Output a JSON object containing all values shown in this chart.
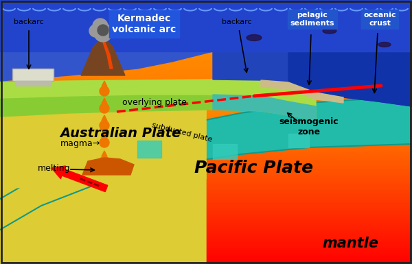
{
  "fig_width": 6.0,
  "fig_height": 3.85,
  "dpi": 100,
  "labels": {
    "australian_plate": "Australian Plate",
    "pacific_plate": "Pacific Plate",
    "overlying_plate": "overlying plate",
    "subducted_plate": "subducted plate",
    "seismogenic_zone": "seismogenic\nzone",
    "mantle": "mantle",
    "backarc_left": "backarc",
    "backarc_right": "backarc",
    "pelagic_sediments": "pelagic\nsediments",
    "oceanic_crust": "oceanic\ncrust",
    "magma": "magma→",
    "melting": "melting",
    "kermadec": "Kermadec\nvolcanic arc"
  },
  "colors": {
    "ocean_light": "#2244cc",
    "ocean_dark": "#1133aa",
    "mantle_orange": "#ff8800",
    "mantle_red": "#cc0000",
    "yellow_crust": "#ddcc33",
    "green_light": "#aadd44",
    "green_mid": "#88cc33",
    "teal_pacific": "#22bbaa",
    "teal_dark": "#119988",
    "sand": "#ccbb88",
    "volcano_brown": "#885533",
    "lava_orange": "#ee5500",
    "magma_drop": "#ee7700",
    "wave": "#6699ff",
    "border": "#222222"
  }
}
